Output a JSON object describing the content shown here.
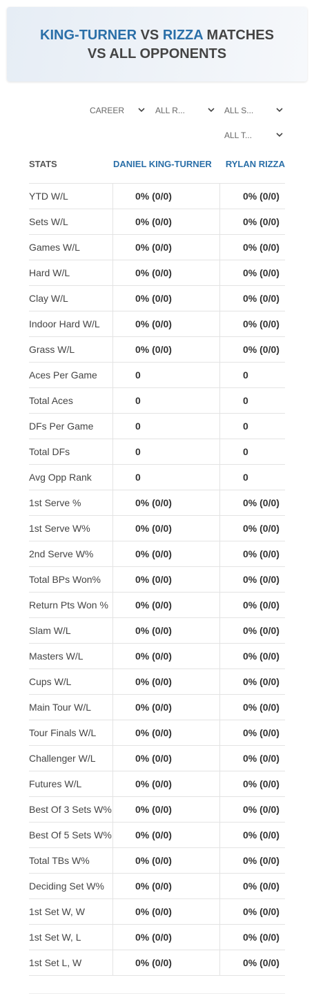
{
  "header": {
    "title": {
      "player1": "KING-TURNER",
      "vs": "VS",
      "player2": "RIZZA",
      "rest1": "MATCHES",
      "rest2": "VS ALL OPPONENTS"
    }
  },
  "filters": [
    "CAREER",
    "ALL R...",
    "ALL S...",
    "ALL T..."
  ],
  "table": {
    "columns": [
      "STATS",
      "DANIEL KING-TURNER",
      "RYLAN RIZZA"
    ],
    "rows": [
      [
        "YTD W/L",
        "0% (0/0)",
        "0% (0/0)"
      ],
      [
        "Sets W/L",
        "0% (0/0)",
        "0% (0/0)"
      ],
      [
        "Games W/L",
        "0% (0/0)",
        "0% (0/0)"
      ],
      [
        "Hard W/L",
        "0% (0/0)",
        "0% (0/0)"
      ],
      [
        "Clay W/L",
        "0% (0/0)",
        "0% (0/0)"
      ],
      [
        "Indoor Hard W/L",
        "0% (0/0)",
        "0% (0/0)"
      ],
      [
        "Grass W/L",
        "0% (0/0)",
        "0% (0/0)"
      ],
      [
        "Aces Per Game",
        "0",
        "0"
      ],
      [
        "Total Aces",
        "0",
        "0"
      ],
      [
        "DFs Per Game",
        "0",
        "0"
      ],
      [
        "Total DFs",
        "0",
        "0"
      ],
      [
        "Avg Opp Rank",
        "0",
        "0"
      ],
      [
        "1st Serve %",
        "0% (0/0)",
        "0% (0/0)"
      ],
      [
        "1st Serve W%",
        "0% (0/0)",
        "0% (0/0)"
      ],
      [
        "2nd Serve W%",
        "0% (0/0)",
        "0% (0/0)"
      ],
      [
        "Total BPs Won%",
        "0% (0/0)",
        "0% (0/0)"
      ],
      [
        "Return Pts Won %",
        "0% (0/0)",
        "0% (0/0)"
      ],
      [
        "Slam W/L",
        "0% (0/0)",
        "0% (0/0)"
      ],
      [
        "Masters W/L",
        "0% (0/0)",
        "0% (0/0)"
      ],
      [
        "Cups W/L",
        "0% (0/0)",
        "0% (0/0)"
      ],
      [
        "Main Tour W/L",
        "0% (0/0)",
        "0% (0/0)"
      ],
      [
        "Tour Finals W/L",
        "0% (0/0)",
        "0% (0/0)"
      ],
      [
        "Challenger W/L",
        "0% (0/0)",
        "0% (0/0)"
      ],
      [
        "Futures W/L",
        "0% (0/0)",
        "0% (0/0)"
      ],
      [
        "Best Of 3 Sets W%",
        "0% (0/0)",
        "0% (0/0)"
      ],
      [
        "Best Of 5 Sets W%",
        "0% (0/0)",
        "0% (0/0)"
      ],
      [
        "Total TBs W%",
        "0% (0/0)",
        "0% (0/0)"
      ],
      [
        "Deciding Set W%",
        "0% (0/0)",
        "0% (0/0)"
      ],
      [
        "1st Set W, W",
        "0% (0/0)",
        "0% (0/0)"
      ],
      [
        "1st Set W, L",
        "0% (0/0)",
        "0% (0/0)"
      ],
      [
        "1st Set L, W",
        "0% (0/0)",
        "0% (0/0)"
      ]
    ]
  }
}
